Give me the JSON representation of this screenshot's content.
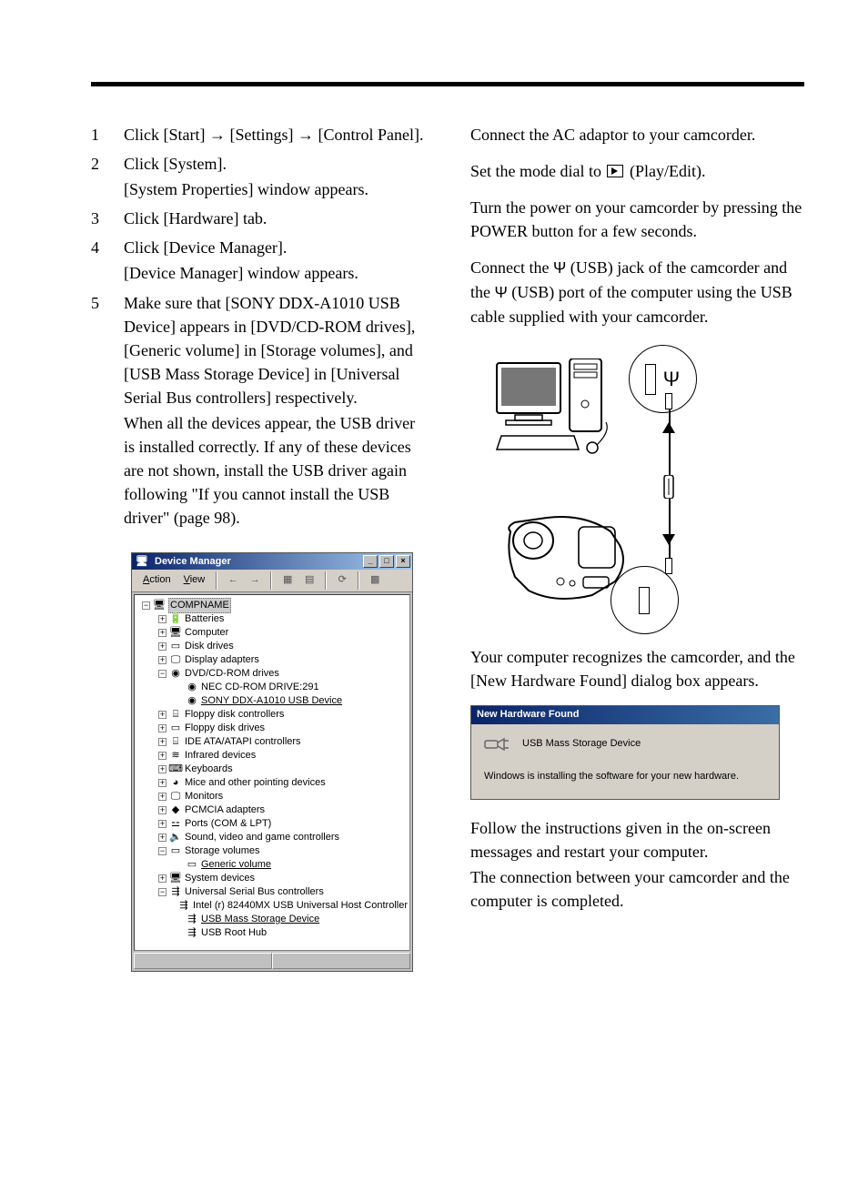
{
  "left": {
    "steps": [
      {
        "num": "1",
        "lines": [
          "Click [Start] → [Settings] → [Control Panel]."
        ]
      },
      {
        "num": "2",
        "lines": [
          "Click [System].",
          "[System Properties] window appears."
        ]
      },
      {
        "num": "3",
        "lines": [
          "Click [Hardware] tab."
        ]
      },
      {
        "num": "4",
        "lines": [
          "Click [Device Manager].",
          "[Device Manager] window appears."
        ]
      },
      {
        "num": "5",
        "lines": [
          "Make sure that [SONY DDX-A1010 USB Device] appears in [DVD/CD-ROM drives], [Generic volume] in [Storage volumes], and [USB Mass Storage Device] in [Universal Serial Bus controllers] respectively.",
          "When all the devices appear, the USB driver is installed correctly. If any of these devices are not shown, install the USB driver again following \"If you cannot install the USB driver\" (page 98)."
        ]
      }
    ]
  },
  "dm": {
    "title": "Device Manager",
    "menu_action": "Action",
    "menu_view": "View",
    "tree": [
      {
        "depth": 0,
        "pm": "−",
        "icoClass": "ico-pc",
        "label": "COMPNAME",
        "sel": true
      },
      {
        "depth": 1,
        "pm": "+",
        "icoClass": "ico-batt",
        "label": "Batteries"
      },
      {
        "depth": 1,
        "pm": "+",
        "icoClass": "ico-pc",
        "label": "Computer"
      },
      {
        "depth": 1,
        "pm": "+",
        "icoClass": "ico-disk",
        "label": "Disk drives"
      },
      {
        "depth": 1,
        "pm": "+",
        "icoClass": "ico-mon",
        "label": "Display adapters"
      },
      {
        "depth": 1,
        "pm": "−",
        "icoClass": "ico-cd",
        "label": "DVD/CD-ROM drives"
      },
      {
        "depth": 2,
        "pm": "",
        "icoClass": "ico-cd",
        "label": "NEC CD-ROM DRIVE:291"
      },
      {
        "depth": 2,
        "pm": "",
        "icoClass": "ico-cd",
        "label": "SONY DDX-A1010 USB Device",
        "ul": true
      },
      {
        "depth": 1,
        "pm": "+",
        "icoClass": "ico-ctrl",
        "label": "Floppy disk controllers"
      },
      {
        "depth": 1,
        "pm": "+",
        "icoClass": "ico-disk",
        "label": "Floppy disk drives"
      },
      {
        "depth": 1,
        "pm": "+",
        "icoClass": "ico-ctrl",
        "label": "IDE ATA/ATAPI controllers"
      },
      {
        "depth": 1,
        "pm": "+",
        "icoClass": "ico-ir",
        "label": "Infrared devices"
      },
      {
        "depth": 1,
        "pm": "+",
        "icoClass": "ico-kb",
        "label": "Keyboards"
      },
      {
        "depth": 1,
        "pm": "+",
        "icoClass": "ico-mouse",
        "label": "Mice and other pointing devices"
      },
      {
        "depth": 1,
        "pm": "+",
        "icoClass": "ico-mon",
        "label": "Monitors"
      },
      {
        "depth": 1,
        "pm": "+",
        "icoClass": "ico-pcm",
        "label": "PCMCIA adapters"
      },
      {
        "depth": 1,
        "pm": "+",
        "icoClass": "ico-port",
        "label": "Ports (COM & LPT)"
      },
      {
        "depth": 1,
        "pm": "+",
        "icoClass": "ico-snd",
        "label": "Sound, video and game controllers"
      },
      {
        "depth": 1,
        "pm": "−",
        "icoClass": "ico-disk",
        "label": "Storage volumes"
      },
      {
        "depth": 2,
        "pm": "",
        "icoClass": "ico-disk",
        "label": "Generic volume",
        "ul": true
      },
      {
        "depth": 1,
        "pm": "+",
        "icoClass": "ico-pc",
        "label": "System devices"
      },
      {
        "depth": 1,
        "pm": "−",
        "icoClass": "ico-usb",
        "label": "Universal Serial Bus controllers"
      },
      {
        "depth": 2,
        "pm": "",
        "icoClass": "ico-usb",
        "label": "Intel (r) 82440MX USB Universal Host Controller"
      },
      {
        "depth": 2,
        "pm": "",
        "icoClass": "ico-usb",
        "label": "USB Mass Storage Device",
        "ul": true
      },
      {
        "depth": 2,
        "pm": "",
        "icoClass": "ico-usb",
        "label": "USB Root Hub"
      }
    ]
  },
  "right": {
    "p1": "Connect the AC adaptor to your camcorder.",
    "p2a": "Set the mode dial to ",
    "p2b": " (Play/Edit).",
    "p3": "Turn the power on your camcorder by pressing the POWER button for a few seconds.",
    "p4a": "Connect the ",
    "p4b": " (USB) jack of the camcorder and the ",
    "p4c": " (USB) port of the computer using the USB cable supplied with your camcorder.",
    "p5": "Your computer recognizes the camcorder, and the [New Hardware Found] dialog box appears.",
    "p6a": "Follow the instructions given in the on-screen messages and restart your computer.",
    "p6b": "The connection between your camcorder and the computer is completed."
  },
  "nhf": {
    "title": "New Hardware Found",
    "device": "USB Mass Storage Device",
    "message": "Windows is installing the software for your new hardware."
  },
  "icons": {
    "pc": "🖥",
    "batt": "🔋",
    "disk": "▭",
    "mon": "🖵",
    "cd": "◉",
    "ctrl": "⌸",
    "ir": "≋",
    "kb": "⌨",
    "mouse": "◕",
    "pcm": "◆",
    "port": "⚍",
    "snd": "🔈",
    "usb": "⇶"
  }
}
